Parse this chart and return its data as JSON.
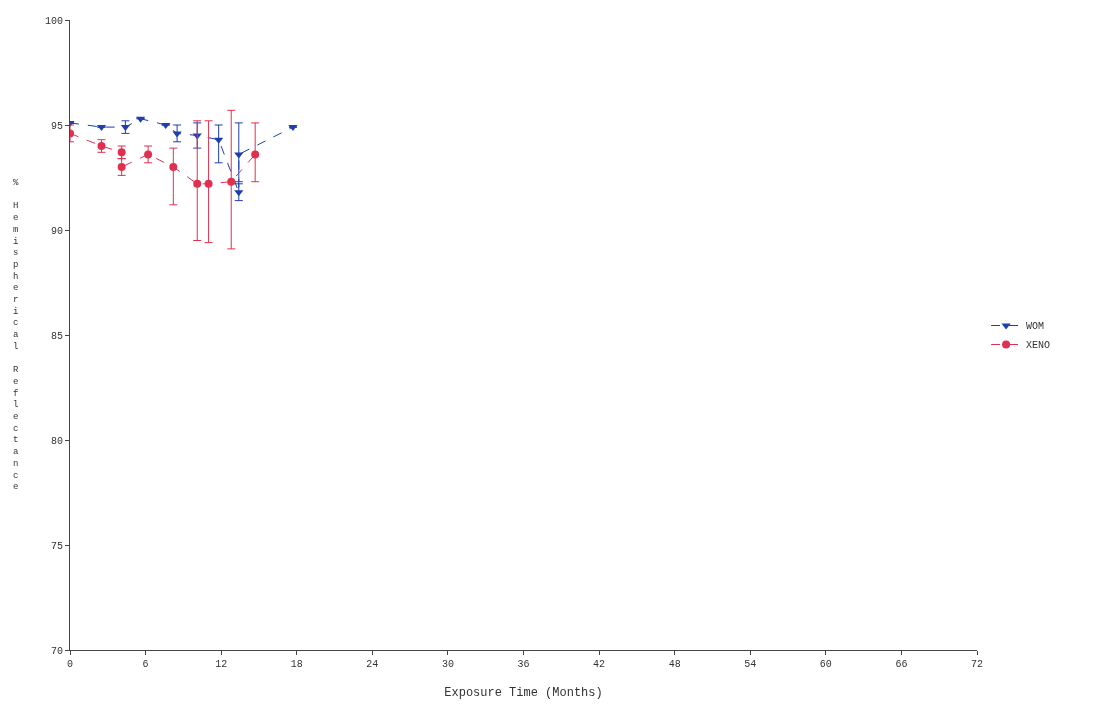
{
  "chart_data": {
    "type": "line",
    "xlabel": "Exposure Time (Months)",
    "ylabel": "% Hemispherical Reflectance",
    "xlim": [
      0,
      72
    ],
    "xticks": [
      0,
      6,
      12,
      18,
      24,
      30,
      36,
      42,
      48,
      54,
      60,
      66,
      72
    ],
    "ylim": [
      70,
      100
    ],
    "yticks": [
      70,
      75,
      80,
      85,
      90,
      95,
      100
    ],
    "legend": "right",
    "line_style": "dashed",
    "series": [
      {
        "name": "WOM",
        "color": "#1f3fb0",
        "marker": "triangle",
        "x": [
          0,
          2.5,
          4.4,
          5.6,
          7.6,
          8.5,
          10.1,
          11.8,
          13.4,
          13.4,
          17.7
        ],
        "values": [
          95.1,
          94.9,
          94.9,
          95.3,
          95.0,
          94.6,
          94.5,
          94.3,
          91.8,
          93.6,
          94.9
        ],
        "errors": [
          null,
          null,
          0.3,
          null,
          null,
          0.4,
          0.6,
          [
            93.2,
            95.0
          ],
          0.4,
          [
            92.3,
            95.1
          ],
          null
        ]
      },
      {
        "name": "XENO",
        "color": "#e03050",
        "marker": "circle",
        "x": [
          0,
          2.5,
          4.1,
          4.1,
          6.2,
          8.2,
          10.1,
          11.0,
          12.8,
          14.7
        ],
        "values": [
          94.6,
          94.0,
          93.7,
          93.0,
          93.6,
          93.0,
          92.2,
          92.2,
          92.3,
          93.6
        ],
        "errors": [
          0.4,
          0.3,
          0.3,
          0.4,
          0.4,
          [
            91.2,
            93.9
          ],
          [
            89.5,
            95.2
          ],
          [
            89.4,
            95.2
          ],
          [
            89.1,
            95.7
          ],
          [
            92.3,
            95.1
          ]
        ]
      }
    ]
  }
}
